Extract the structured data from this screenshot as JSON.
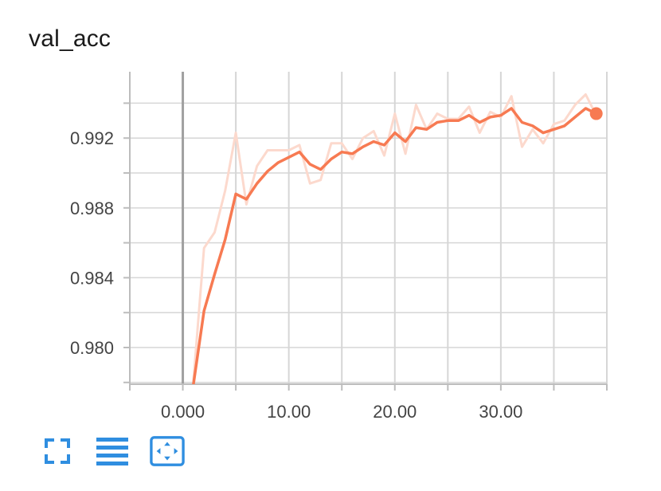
{
  "card": {
    "title": "val_acc"
  },
  "colors": {
    "smoothed": "#f77a52",
    "raw": "#fcd9cd",
    "grid": "#d6d6d6",
    "zero_line": "#a0a0a0",
    "icon": "#2f8ee0"
  },
  "toolbar": {
    "buttons": [
      {
        "name": "fit-screen-button",
        "icon": "fullscreen-icon"
      },
      {
        "name": "toggle-log-scale-button",
        "icon": "lines-icon"
      },
      {
        "name": "fit-domain-button",
        "icon": "fit-domain-icon"
      }
    ]
  },
  "chart_data": {
    "type": "line",
    "title": "val_acc",
    "xlim": [
      -5,
      40
    ],
    "ylim": [
      0.9779,
      0.9958
    ],
    "x_ticks": [
      0,
      10,
      20,
      30
    ],
    "x_tick_labels": [
      "0.000",
      "10.00",
      "20.00",
      "30.00"
    ],
    "y_ticks": [
      0.98,
      0.984,
      0.988,
      0.992
    ],
    "y_tick_labels": [
      "0.980",
      "0.984",
      "0.988",
      "0.992"
    ],
    "grid": true,
    "series": [
      {
        "role": "raw",
        "x": [
          1,
          2,
          3,
          4,
          5,
          6,
          7,
          8,
          9,
          10,
          11,
          12,
          13,
          14,
          15,
          16,
          17,
          18,
          19,
          20,
          21,
          22,
          23,
          24,
          25,
          26,
          27,
          28,
          29,
          30,
          31,
          32,
          33,
          34,
          35,
          36,
          37,
          38,
          39
        ],
        "y": [
          0.9781,
          0.9857,
          0.9866,
          0.989,
          0.9923,
          0.9882,
          0.9904,
          0.9913,
          0.9913,
          0.9913,
          0.9916,
          0.9894,
          0.9896,
          0.9917,
          0.9917,
          0.9908,
          0.992,
          0.9924,
          0.991,
          0.9934,
          0.9911,
          0.9939,
          0.9925,
          0.9934,
          0.9931,
          0.9931,
          0.9938,
          0.9923,
          0.9935,
          0.9932,
          0.9944,
          0.9915,
          0.9925,
          0.9917,
          0.9928,
          0.993,
          0.9939,
          0.9945,
          0.9933
        ]
      },
      {
        "role": "smoothed",
        "x": [
          1,
          2,
          3,
          4,
          5,
          6,
          7,
          8,
          9,
          10,
          11,
          12,
          13,
          14,
          15,
          16,
          17,
          18,
          19,
          20,
          21,
          22,
          23,
          24,
          25,
          26,
          27,
          28,
          29,
          30,
          31,
          32,
          33,
          34,
          35,
          36,
          37,
          38,
          39
        ],
        "y": [
          0.9779,
          0.9821,
          0.9842,
          0.9862,
          0.9888,
          0.9885,
          0.9894,
          0.9901,
          0.9906,
          0.9909,
          0.9912,
          0.9905,
          0.9902,
          0.9908,
          0.9912,
          0.9911,
          0.9915,
          0.9918,
          0.9916,
          0.9923,
          0.9918,
          0.9926,
          0.9925,
          0.9929,
          0.993,
          0.993,
          0.9933,
          0.9929,
          0.9932,
          0.9933,
          0.9937,
          0.9929,
          0.9927,
          0.9923,
          0.9925,
          0.9927,
          0.9932,
          0.9937,
          0.9934
        ]
      }
    ]
  }
}
